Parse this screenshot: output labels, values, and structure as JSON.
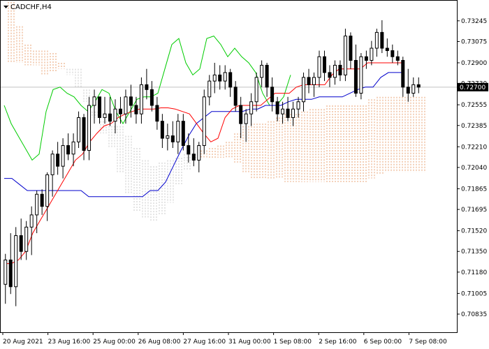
{
  "chart_data": {
    "type": "candlestick",
    "title": "CADCHF,H4",
    "current_price": "0.72700",
    "y_ticks": [
      "0.73245",
      "0.73075",
      "0.72900",
      "0.72730",
      "0.72555",
      "0.72385",
      "0.72210",
      "0.72040",
      "0.71865",
      "0.71695",
      "0.71520",
      "0.71350",
      "0.71180",
      "0.71005",
      "0.70835"
    ],
    "x_ticks": [
      "20 Aug 2021",
      "23 Aug 16:00",
      "25 Aug 00:00",
      "26 Aug 08:00",
      "27 Aug 16:00",
      "31 Aug 00:00",
      "1 Sep 08:00",
      "2 Sep 16:00",
      "6 Sep 00:00",
      "7 Sep 08:00"
    ],
    "ylim": [
      0.70835,
      0.7333
    ],
    "colors": {
      "bull": "#000000",
      "bear": "#000000",
      "wick": "#000000",
      "tenkan": "#ff0000",
      "kijun": "#0000cc",
      "chikou": "#00cc00",
      "cloud_a": "#e8a070",
      "cloud_b": "#c8c8c8",
      "grid": "#c0c0c0"
    },
    "candles": [
      [
        0.7108,
        0.7133,
        0.7092,
        0.7128
      ],
      [
        0.7128,
        0.715,
        0.71,
        0.7106
      ],
      [
        0.7106,
        0.7155,
        0.709,
        0.7148
      ],
      [
        0.7148,
        0.7162,
        0.7128,
        0.7135
      ],
      [
        0.7135,
        0.716,
        0.7128,
        0.7155
      ],
      [
        0.7155,
        0.7172,
        0.7132,
        0.7165
      ],
      [
        0.7165,
        0.7185,
        0.715,
        0.7182
      ],
      [
        0.7182,
        0.7186,
        0.7165,
        0.7172
      ],
      [
        0.7172,
        0.72,
        0.716,
        0.7198
      ],
      [
        0.7198,
        0.7218,
        0.718,
        0.7215
      ],
      [
        0.7215,
        0.7225,
        0.7198,
        0.7205
      ],
      [
        0.7205,
        0.7228,
        0.7195,
        0.7222
      ],
      [
        0.7222,
        0.7232,
        0.721,
        0.7215
      ],
      [
        0.7215,
        0.7232,
        0.7205,
        0.7225
      ],
      [
        0.7225,
        0.725,
        0.722,
        0.7245
      ],
      [
        0.7245,
        0.7248,
        0.721,
        0.7218
      ],
      [
        0.7218,
        0.7262,
        0.721,
        0.7255
      ],
      [
        0.7255,
        0.7268,
        0.724,
        0.7262
      ],
      [
        0.7262,
        0.7262,
        0.724,
        0.7245
      ],
      [
        0.7245,
        0.7262,
        0.724,
        0.7248
      ],
      [
        0.7248,
        0.7262,
        0.7238,
        0.7242
      ],
      [
        0.7242,
        0.726,
        0.7232,
        0.7252
      ],
      [
        0.7252,
        0.7262,
        0.724,
        0.7248
      ],
      [
        0.7248,
        0.7268,
        0.724,
        0.7262
      ],
      [
        0.7262,
        0.7272,
        0.7245,
        0.7255
      ],
      [
        0.7255,
        0.7262,
        0.724,
        0.7248
      ],
      [
        0.7248,
        0.7278,
        0.724,
        0.7272
      ],
      [
        0.7272,
        0.7285,
        0.726,
        0.7268
      ],
      [
        0.7268,
        0.7275,
        0.725,
        0.7255
      ],
      [
        0.7255,
        0.7262,
        0.7235,
        0.7242
      ],
      [
        0.7242,
        0.7248,
        0.722,
        0.7228
      ],
      [
        0.7228,
        0.724,
        0.7218,
        0.723
      ],
      [
        0.723,
        0.7242,
        0.722,
        0.7225
      ],
      [
        0.7225,
        0.7248,
        0.7215,
        0.7242
      ],
      [
        0.7242,
        0.7248,
        0.7218,
        0.7222
      ],
      [
        0.7222,
        0.7232,
        0.7208,
        0.7215
      ],
      [
        0.7215,
        0.7228,
        0.7205,
        0.721
      ],
      [
        0.721,
        0.7225,
        0.72,
        0.7222
      ],
      [
        0.7222,
        0.7268,
        0.7215,
        0.7262
      ],
      [
        0.7262,
        0.728,
        0.7255,
        0.7275
      ],
      [
        0.7275,
        0.729,
        0.7265,
        0.728
      ],
      [
        0.728,
        0.7288,
        0.7268,
        0.7275
      ],
      [
        0.7275,
        0.7288,
        0.7268,
        0.7282
      ],
      [
        0.7282,
        0.7285,
        0.7262,
        0.727
      ],
      [
        0.727,
        0.7275,
        0.725,
        0.7255
      ],
      [
        0.7255,
        0.7262,
        0.7228,
        0.724
      ],
      [
        0.724,
        0.7252,
        0.7225,
        0.7248
      ],
      [
        0.7248,
        0.7265,
        0.7238,
        0.7258
      ],
      [
        0.7258,
        0.7282,
        0.725,
        0.7278
      ],
      [
        0.7278,
        0.7292,
        0.727,
        0.7288
      ],
      [
        0.7288,
        0.729,
        0.7262,
        0.727
      ],
      [
        0.727,
        0.7278,
        0.725,
        0.7258
      ],
      [
        0.7258,
        0.7262,
        0.7242,
        0.7248
      ],
      [
        0.7248,
        0.7258,
        0.724,
        0.7252
      ],
      [
        0.7252,
        0.7262,
        0.7242,
        0.7245
      ],
      [
        0.7245,
        0.7258,
        0.7238,
        0.7252
      ],
      [
        0.7252,
        0.7262,
        0.7245,
        0.7258
      ],
      [
        0.7258,
        0.7282,
        0.725,
        0.7278
      ],
      [
        0.7278,
        0.7285,
        0.7265,
        0.7272
      ],
      [
        0.7272,
        0.7282,
        0.7262,
        0.7278
      ],
      [
        0.7278,
        0.73,
        0.727,
        0.7295
      ],
      [
        0.7295,
        0.73,
        0.7275,
        0.7282
      ],
      [
        0.7282,
        0.7288,
        0.727,
        0.7278
      ],
      [
        0.7278,
        0.7292,
        0.7272,
        0.7288
      ],
      [
        0.7288,
        0.7292,
        0.7275,
        0.728
      ],
      [
        0.728,
        0.7318,
        0.7275,
        0.7312
      ],
      [
        0.7312,
        0.7315,
        0.7285,
        0.7292
      ],
      [
        0.7292,
        0.7305,
        0.7262,
        0.7265
      ],
      [
        0.7265,
        0.7298,
        0.726,
        0.7295
      ],
      [
        0.7295,
        0.73,
        0.7285,
        0.7292
      ],
      [
        0.7292,
        0.7308,
        0.7288,
        0.7302
      ],
      [
        0.7302,
        0.7318,
        0.7295,
        0.7315
      ],
      [
        0.7315,
        0.7325,
        0.7298,
        0.7302
      ],
      [
        0.7302,
        0.731,
        0.7295,
        0.73
      ],
      [
        0.73,
        0.7305,
        0.729,
        0.7295
      ],
      [
        0.7295,
        0.73,
        0.7288,
        0.7292
      ],
      [
        0.7292,
        0.7295,
        0.7262,
        0.727
      ],
      [
        0.727,
        0.7285,
        0.7258,
        0.7265
      ],
      [
        0.7265,
        0.7278,
        0.7262,
        0.7272
      ],
      [
        0.7272,
        0.7278,
        0.7265,
        0.727
      ]
    ],
    "tenkan": [
      0.7125,
      0.7125,
      0.7128,
      0.7135,
      0.715,
      0.716,
      0.717,
      0.718,
      0.719,
      0.72,
      0.721,
      0.7215,
      0.7225,
      0.7232,
      0.7238,
      0.724,
      0.7245,
      0.7248,
      0.725,
      0.7252,
      0.7252,
      0.7252,
      0.7253,
      0.7253,
      0.7252,
      0.725,
      0.7248,
      0.724,
      0.7232,
      0.7225,
      0.7228,
      0.7245,
      0.7252,
      0.7255,
      0.7255,
      0.7255,
      0.7255,
      0.726,
      0.7265,
      0.7265,
      0.7265,
      0.727,
      0.7272,
      0.7272,
      0.7272,
      0.7272,
      0.728,
      0.7285,
      0.7285,
      0.7285,
      0.7285,
      0.729,
      0.729,
      0.729,
      0.729,
      0.729,
      0.729
    ],
    "kijun": [
      0.7195,
      0.7195,
      0.719,
      0.7185,
      0.7185,
      0.7185,
      0.7185,
      0.7185,
      0.7185,
      0.7185,
      0.7185,
      0.718,
      0.718,
      0.718,
      0.718,
      0.718,
      0.718,
      0.718,
      0.718,
      0.7185,
      0.7185,
      0.7192,
      0.7205,
      0.7218,
      0.723,
      0.724,
      0.7245,
      0.725,
      0.725,
      0.725,
      0.725,
      0.725,
      0.7252,
      0.7252,
      0.7255,
      0.7255,
      0.7255,
      0.7258,
      0.726,
      0.726,
      0.726,
      0.7262,
      0.7262,
      0.7262,
      0.7262,
      0.7265,
      0.7268,
      0.727,
      0.727,
      0.7278,
      0.7282,
      0.7282,
      0.7282
    ],
    "chikou": [
      0.7255,
      0.724,
      0.723,
      0.722,
      0.721,
      0.7215,
      0.725,
      0.7268,
      0.727,
      0.7265,
      0.7262,
      0.7255,
      0.725,
      0.7258,
      0.7268,
      0.7265,
      0.725,
      0.724,
      0.725,
      0.726,
      0.7262,
      0.7262,
      0.7265,
      0.7285,
      0.7305,
      0.731,
      0.729,
      0.728,
      0.7285,
      0.731,
      0.7312,
      0.7305,
      0.7295,
      0.7302,
      0.7295,
      0.729,
      0.7282,
      0.7265,
      0.7255,
      0.7255,
      0.7262,
      0.728
    ],
    "cloud_top": [
      0.734,
      0.732,
      0.7305,
      0.73,
      0.73,
      0.7298,
      0.729,
      0.728,
      0.727,
      0.7258,
      0.7245,
      0.7232,
      0.722,
      0.72,
      0.7182,
      0.7168,
      0.7162,
      0.716,
      0.7165,
      0.7175,
      0.719,
      0.7202,
      0.7212,
      0.7218,
      0.722,
      0.7222,
      0.7225,
      0.7232,
      0.7238,
      0.724,
      0.724,
      0.7242,
      0.7245,
      0.7248,
      0.7248,
      0.725,
      0.7252,
      0.7252,
      0.7255,
      0.7255,
      0.7255,
      0.7255,
      0.7255,
      0.726,
      0.7262,
      0.7262,
      0.7262,
      0.7262,
      0.7262,
      0.7262
    ],
    "cloud_bottom": [
      0.729,
      0.729,
      0.7288,
      0.7288,
      0.728,
      0.7282,
      0.7285,
      0.7285,
      0.7285,
      0.7268,
      0.725,
      0.7242,
      0.7238,
      0.7238,
      0.723,
      0.722,
      0.721,
      0.7205,
      0.7208,
      0.721,
      0.7212,
      0.7215,
      0.7215,
      0.7212,
      0.7212,
      0.7212,
      0.7212,
      0.7208,
      0.72,
      0.7195,
      0.7195,
      0.7195,
      0.7195,
      0.7192,
      0.7192,
      0.7192,
      0.7192,
      0.7192,
      0.7192,
      0.7192,
      0.7192,
      0.7192,
      0.7192,
      0.7195,
      0.7198,
      0.72,
      0.72,
      0.72,
      0.72,
      0.72
    ]
  }
}
